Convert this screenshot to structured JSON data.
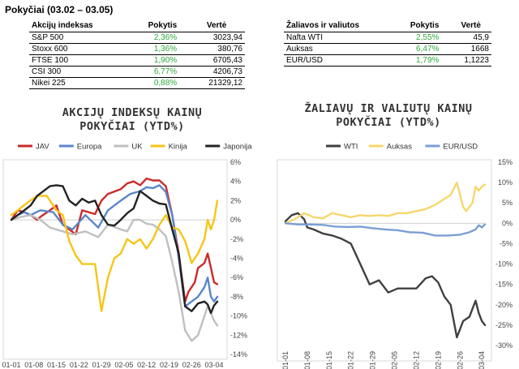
{
  "title": "Pokyčiai (03.02 – 03.05)",
  "indices_table": {
    "headers": [
      "Akcijų indeksas",
      "Pokytis",
      "Vertė"
    ],
    "rows": [
      {
        "name": "S&P 500",
        "change": "2,36%",
        "value": "3023,94"
      },
      {
        "name": "Stoxx 600",
        "change": "1,36%",
        "value": "380,76"
      },
      {
        "name": "FTSE 100",
        "change": "1,90%",
        "value": "6705,43"
      },
      {
        "name": "CSI 300",
        "change": "6,77%",
        "value": "4206,73"
      },
      {
        "name": "Nikei 225",
        "change": "0,88%",
        "value": "21329,12"
      }
    ]
  },
  "commodities_table": {
    "headers": [
      "Žaliavos ir valiutos",
      "Pokytis",
      "Vertė"
    ],
    "rows": [
      {
        "name": "Nafta WTI",
        "change": "2,55%",
        "value": "45,9"
      },
      {
        "name": "Auksas",
        "change": "6,47%",
        "value": "1668"
      },
      {
        "name": "EUR/USD",
        "change": "1,79%",
        "value": "1,1223"
      }
    ]
  },
  "colors": {
    "positive": "#2eaa3a"
  },
  "chart_data": [
    {
      "type": "line",
      "title_lines": [
        "AKCIJŲ INDEKSŲ KAINŲ",
        "POKYČIAI (YTD%)"
      ],
      "x_ticks": [
        "01-01",
        "01-08",
        "01-15",
        "01-22",
        "01-29",
        "02-05",
        "02-12",
        "02-19",
        "02-26",
        "03-04"
      ],
      "ylim": [
        -14,
        6
      ],
      "y_ticks": [
        6,
        4,
        2,
        0,
        -2,
        -4,
        -6,
        -8,
        -10,
        -12,
        -14
      ],
      "y_tick_labels": [
        "6%",
        "4%",
        "2%",
        "0%",
        "-2%",
        "-4%",
        "-6%",
        "-8%",
        "-10%",
        "-12%",
        "-14%"
      ],
      "grid": false,
      "legend": "top",
      "series": [
        {
          "name": "JAV",
          "color": "#cc2a2a",
          "x": [
            1,
            3,
            5,
            7,
            9,
            10,
            13,
            15,
            17,
            21,
            23,
            27,
            29,
            31,
            35,
            37,
            39,
            41,
            43,
            45,
            47,
            49,
            51,
            53,
            55,
            56,
            58,
            59,
            61,
            62,
            63,
            64,
            65
          ],
          "values": [
            0,
            1,
            0.8,
            0.5,
            0,
            0.3,
            1,
            1.5,
            -0.5,
            -1.5,
            1,
            0.6,
            2,
            2.7,
            3.2,
            3.8,
            4,
            3.6,
            4.3,
            4.1,
            4.1,
            3.5,
            0.5,
            -3.5,
            -8.5,
            -7.5,
            -6.5,
            -5,
            -4.5,
            -3.5,
            -5,
            -6.5,
            -6.7
          ]
        },
        {
          "name": "Europa",
          "color": "#5b86c9",
          "x": [
            1,
            3,
            5,
            7,
            10,
            14,
            17,
            20,
            24,
            28,
            31,
            35,
            38,
            41,
            43,
            45,
            47,
            49,
            51,
            53,
            55,
            57,
            59,
            61,
            62,
            63,
            64,
            65
          ],
          "values": [
            0,
            0.5,
            0.8,
            0.5,
            1,
            0.8,
            -0.5,
            -1,
            0.5,
            -0.8,
            1,
            2,
            2.7,
            3,
            3.4,
            3.3,
            3.6,
            2.9,
            0.5,
            -4,
            -9,
            -8.5,
            -8,
            -7,
            -6,
            -8,
            -8.5,
            -8
          ]
        },
        {
          "name": "UK",
          "color": "#bfbfbf",
          "x": [
            1,
            4,
            7,
            10,
            13,
            17,
            20,
            24,
            28,
            31,
            35,
            37,
            39,
            41,
            43,
            45,
            47,
            49,
            51,
            53,
            55,
            57,
            59,
            61,
            62,
            63,
            64,
            65
          ],
          "values": [
            0,
            0.3,
            0.5,
            0,
            -0.8,
            -1.2,
            -1.5,
            -1.2,
            -1.8,
            -0.5,
            -1,
            -1.2,
            0,
            0,
            -0.4,
            -0.5,
            -1,
            -1.7,
            -4.4,
            -7.5,
            -11.5,
            -12.6,
            -12,
            -10,
            -9,
            -9.7,
            -10.5,
            -11
          ]
        },
        {
          "name": "Kinija",
          "color": "#f5c518",
          "x": [
            1,
            3,
            6,
            9,
            12,
            15,
            17,
            19,
            21,
            23,
            25,
            27,
            29,
            31,
            33,
            35,
            37,
            39,
            41,
            43,
            45,
            47,
            49,
            51,
            53,
            55,
            57,
            59,
            61,
            62,
            63,
            64,
            65
          ],
          "values": [
            0.5,
            1,
            1.8,
            2.5,
            2.5,
            1,
            0.5,
            -2.2,
            -3.7,
            -4.6,
            -4.6,
            -4.6,
            -9.5,
            -6,
            -4,
            -3.5,
            -2,
            -2.5,
            -2,
            -3,
            -2,
            -0.5,
            0.5,
            -0.8,
            -1,
            -2.2,
            -4.5,
            -3.5,
            -2,
            0,
            -1,
            0,
            2
          ]
        },
        {
          "name": "Japonija",
          "color": "#222222",
          "x": [
            1,
            3,
            5,
            7,
            9,
            11,
            13,
            15,
            17,
            19,
            21,
            23,
            25,
            27,
            29,
            31,
            33,
            35,
            37,
            39,
            41,
            43,
            45,
            47,
            49,
            51,
            53,
            55,
            57,
            59,
            61,
            62,
            63,
            64,
            65
          ],
          "values": [
            0,
            0.5,
            1,
            1.5,
            2.5,
            3,
            3.5,
            3.6,
            3.5,
            2,
            1.5,
            2.2,
            1.8,
            2,
            0.5,
            -0.5,
            -0.6,
            0,
            0.7,
            1.2,
            3,
            2.5,
            2,
            1.7,
            1.6,
            -1,
            -3.5,
            -9,
            -9.5,
            -8.7,
            -8.5,
            -8.8,
            -9.7,
            -8.9,
            -8.5
          ]
        }
      ]
    },
    {
      "type": "line",
      "title_lines": [
        "ŽALIAVŲ IR VALIUTŲ KAINŲ",
        "POKYČIAI (YTD%)"
      ],
      "x_ticks": [
        "01-01",
        "01-08",
        "01-15",
        "01-22",
        "01-29",
        "02-05",
        "02-12",
        "02-19",
        "02-26",
        "03-04"
      ],
      "ylim": [
        -30,
        15
      ],
      "y_ticks": [
        15,
        10,
        5,
        0,
        -5,
        -10,
        -15,
        -20,
        -25,
        -30
      ],
      "y_tick_labels": [
        "15%",
        "10%",
        "5%",
        "0%",
        "-5%",
        "-10%",
        "-15%",
        "-20%",
        "-25%",
        "-30%"
      ],
      "grid": false,
      "legend": "top",
      "series": [
        {
          "name": "WTI",
          "color": "#404040",
          "x": [
            1,
            3,
            5,
            7,
            8,
            10,
            13,
            16,
            19,
            22,
            25,
            28,
            31,
            34,
            37,
            40,
            43,
            46,
            48,
            50,
            52,
            54,
            56,
            58,
            60,
            61,
            62,
            63,
            64,
            65
          ],
          "values": [
            0.5,
            2,
            2.5,
            1,
            -1,
            -1.5,
            -2.5,
            -3,
            -3.8,
            -5,
            -10,
            -15,
            -14,
            -17,
            -16,
            -16,
            -16,
            -13.5,
            -13,
            -14.5,
            -18,
            -20,
            -28,
            -24,
            -23,
            -21,
            -19,
            -22,
            -24,
            -25
          ]
        },
        {
          "name": "Auksas",
          "color": "#f5d76e",
          "x": [
            1,
            4,
            7,
            10,
            13,
            16,
            19,
            22,
            25,
            28,
            31,
            34,
            37,
            40,
            43,
            46,
            49,
            52,
            54,
            56,
            58,
            59,
            60,
            61,
            62,
            63,
            64,
            65
          ],
          "values": [
            0,
            1,
            2.5,
            1.5,
            1.2,
            2.5,
            2,
            1.5,
            2,
            1.8,
            2,
            1.8,
            2.5,
            2.5,
            3,
            3.5,
            4.5,
            6,
            7,
            10,
            4,
            3,
            4,
            5,
            9,
            8,
            9,
            9.5
          ]
        },
        {
          "name": "EUR/USD",
          "color": "#7a9fd4",
          "x": [
            1,
            5,
            9,
            13,
            17,
            21,
            25,
            29,
            33,
            37,
            41,
            45,
            49,
            53,
            57,
            60,
            62,
            63,
            64,
            65
          ],
          "values": [
            0,
            -0.3,
            -0.3,
            -0.4,
            -0.8,
            -0.9,
            -0.8,
            -1.2,
            -1.5,
            -1.7,
            -2.2,
            -2.3,
            -3,
            -3,
            -2.8,
            -2.2,
            -1.5,
            -0.5,
            -1,
            -0.3
          ]
        }
      ]
    }
  ]
}
